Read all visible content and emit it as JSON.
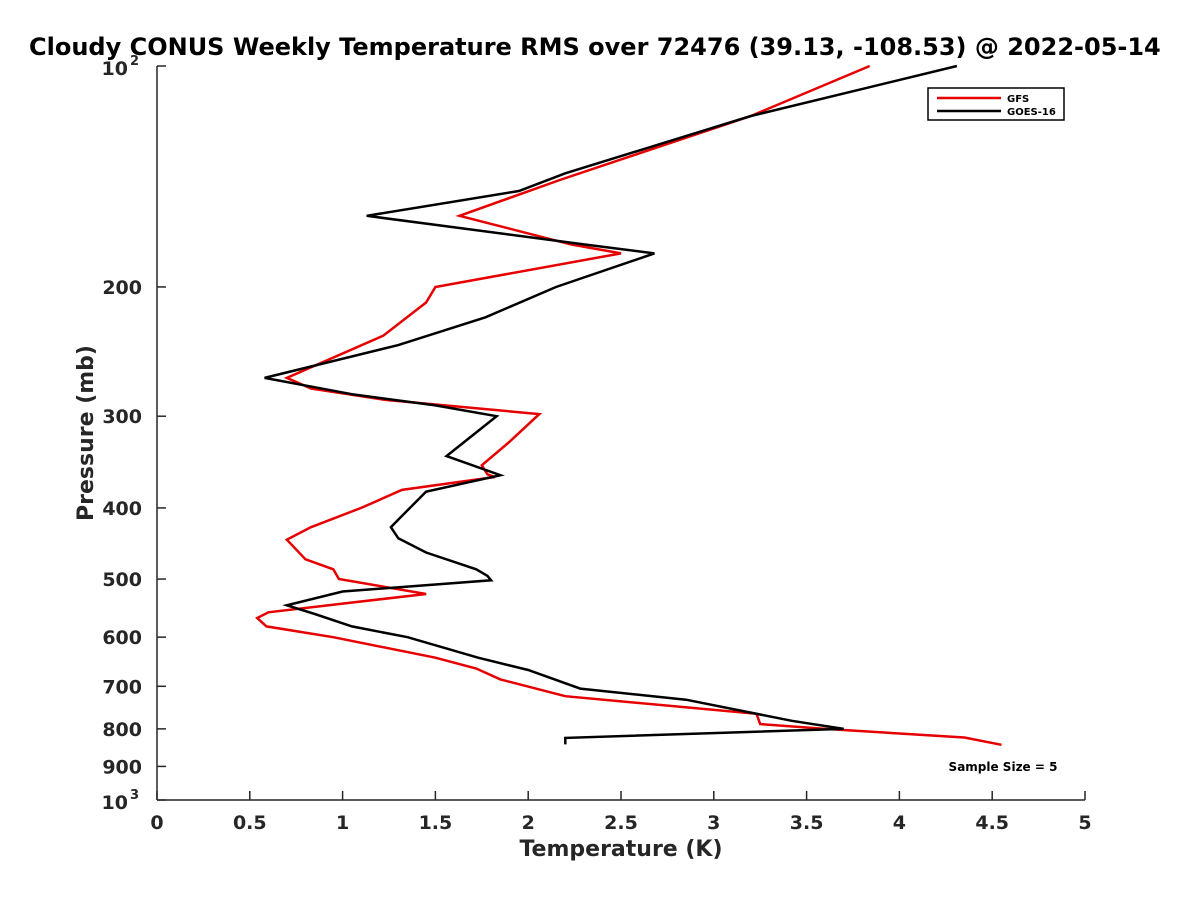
{
  "chart_data": {
    "type": "line",
    "title": "Cloudy CONUS Weekly Temperature RMS over 72476 (39.13, -108.53) @ 2022-05-14",
    "xlabel": "Temperature (K)",
    "ylabel": "Pressure (mb)",
    "xlim": [
      0,
      5
    ],
    "ylim": [
      100,
      1000
    ],
    "y_scale": "log",
    "y_reversed": true,
    "x_ticks": [
      "0",
      "0.5",
      "1",
      "1.5",
      "2",
      "2.5",
      "3",
      "3.5",
      "4",
      "4.5",
      "5"
    ],
    "y_ticks": [
      {
        "value": 100,
        "base": "10",
        "exp": "2"
      },
      {
        "value": 200,
        "label": "200"
      },
      {
        "value": 300,
        "label": "300"
      },
      {
        "value": 400,
        "label": "400"
      },
      {
        "value": 500,
        "label": "500"
      },
      {
        "value": 600,
        "label": "600"
      },
      {
        "value": 700,
        "label": "700"
      },
      {
        "value": 800,
        "label": "800"
      },
      {
        "value": 900,
        "label": "900"
      },
      {
        "value": 1000,
        "base": "10",
        "exp": "3"
      }
    ],
    "legend_position": "top-right",
    "annotation": "Sample Size = 5",
    "series": [
      {
        "name": "GFS",
        "color": "#e60000",
        "points": [
          [
            3.84,
            100
          ],
          [
            3.2,
            117
          ],
          [
            2.17,
            143
          ],
          [
            1.63,
            160
          ],
          [
            2.23,
            175
          ],
          [
            2.5,
            180
          ],
          [
            1.5,
            200
          ],
          [
            1.45,
            210
          ],
          [
            1.22,
            233
          ],
          [
            0.7,
            266
          ],
          [
            0.83,
            275
          ],
          [
            1.23,
            285
          ],
          [
            2.06,
            298
          ],
          [
            1.9,
            325
          ],
          [
            1.75,
            350
          ],
          [
            1.78,
            360
          ],
          [
            1.82,
            363
          ],
          [
            1.32,
            378
          ],
          [
            1.1,
            400
          ],
          [
            0.83,
            425
          ],
          [
            0.7,
            442
          ],
          [
            0.8,
            470
          ],
          [
            0.95,
            485
          ],
          [
            0.98,
            500
          ],
          [
            1.45,
            524
          ],
          [
            1.0,
            540
          ],
          [
            0.6,
            555
          ],
          [
            0.54,
            565
          ],
          [
            0.59,
            580
          ],
          [
            0.95,
            600
          ],
          [
            1.5,
            640
          ],
          [
            1.72,
            662
          ],
          [
            1.85,
            685
          ],
          [
            2.2,
            722
          ],
          [
            3.23,
            763
          ],
          [
            3.25,
            788
          ],
          [
            3.6,
            800
          ],
          [
            4.35,
            822
          ],
          [
            4.55,
            841
          ]
        ]
      },
      {
        "name": "GOES-16",
        "color": "#000000",
        "points": [
          [
            4.31,
            100
          ],
          [
            3.2,
            117
          ],
          [
            2.2,
            140
          ],
          [
            1.95,
            148
          ],
          [
            1.13,
            160
          ],
          [
            2.3,
            175
          ],
          [
            2.68,
            180
          ],
          [
            2.15,
            200
          ],
          [
            1.77,
            220
          ],
          [
            1.3,
            240
          ],
          [
            0.58,
            266
          ],
          [
            1.05,
            280
          ],
          [
            1.5,
            290
          ],
          [
            1.83,
            300
          ],
          [
            1.56,
            340
          ],
          [
            1.85,
            361
          ],
          [
            1.45,
            380
          ],
          [
            1.3,
            415
          ],
          [
            1.26,
            425
          ],
          [
            1.3,
            440
          ],
          [
            1.45,
            460
          ],
          [
            1.72,
            485
          ],
          [
            1.78,
            495
          ],
          [
            1.8,
            502
          ],
          [
            1.0,
            520
          ],
          [
            0.7,
            543
          ],
          [
            0.85,
            558
          ],
          [
            1.05,
            580
          ],
          [
            1.35,
            600
          ],
          [
            1.73,
            640
          ],
          [
            2.0,
            665
          ],
          [
            2.28,
            705
          ],
          [
            2.85,
            730
          ],
          [
            3.42,
            780
          ],
          [
            3.7,
            800
          ],
          [
            2.2,
            823
          ],
          [
            2.2,
            840
          ]
        ]
      }
    ]
  }
}
